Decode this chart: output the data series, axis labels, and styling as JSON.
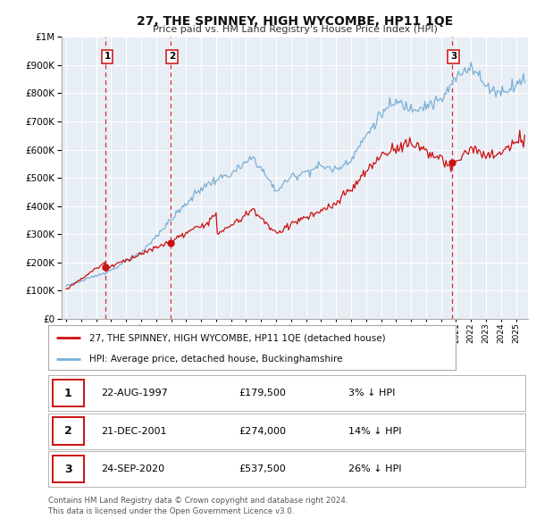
{
  "title": "27, THE SPINNEY, HIGH WYCOMBE, HP11 1QE",
  "subtitle": "Price paid vs. HM Land Registry's House Price Index (HPI)",
  "ylim": [
    0,
    1000000
  ],
  "yticks": [
    0,
    100000,
    200000,
    300000,
    400000,
    500000,
    600000,
    700000,
    800000,
    900000,
    1000000
  ],
  "hpi_color": "#7ab0d8",
  "price_color": "#cc1111",
  "marker_color": "#cc1111",
  "vline_color": "#cc1111",
  "background_color": "#e8eef5",
  "grid_color": "#ffffff",
  "transactions": [
    {
      "date_num": 1997.64,
      "price": 179500,
      "label": "1"
    },
    {
      "date_num": 2001.97,
      "price": 274000,
      "label": "2"
    },
    {
      "date_num": 2020.73,
      "price": 537500,
      "label": "3"
    }
  ],
  "legend_entries": [
    {
      "label": "27, THE SPINNEY, HIGH WYCOMBE, HP11 1QE (detached house)",
      "color": "#cc1111"
    },
    {
      "label": "HPI: Average price, detached house, Buckinghamshire",
      "color": "#7ab0d8"
    }
  ],
  "table_rows": [
    {
      "num": "1",
      "date": "22-AUG-1997",
      "price": "£179,500",
      "info": "3% ↓ HPI"
    },
    {
      "num": "2",
      "date": "21-DEC-2001",
      "price": "£274,000",
      "info": "14% ↓ HPI"
    },
    {
      "num": "3",
      "date": "24-SEP-2020",
      "price": "£537,500",
      "info": "26% ↓ HPI"
    }
  ],
  "footer": "Contains HM Land Registry data © Crown copyright and database right 2024.\nThis data is licensed under the Open Government Licence v3.0.",
  "xlim_start": 1994.7,
  "xlim_end": 2025.8
}
